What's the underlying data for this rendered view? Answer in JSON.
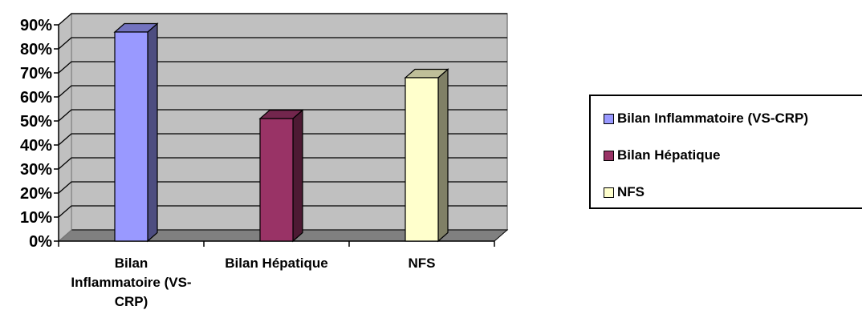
{
  "chart_data": {
    "type": "bar",
    "categories": [
      "Bilan Inflammatoire (VS-CRP)",
      "Bilan Hépatique",
      "NFS"
    ],
    "category_lines": [
      [
        "Bilan",
        "Inflammatoire (VS-",
        "CRP)"
      ],
      [
        "Bilan Hépatique"
      ],
      [
        "NFS"
      ]
    ],
    "values": [
      87,
      51,
      68
    ],
    "colors": [
      "#9999ff",
      "#993366",
      "#ffffcc"
    ],
    "ylim": [
      0,
      90
    ],
    "yticks": [
      "0%",
      "10%",
      "20%",
      "30%",
      "40%",
      "50%",
      "60%",
      "70%",
      "80%",
      "90%"
    ],
    "grid": true,
    "title": "",
    "xlabel": "",
    "ylabel": "",
    "legend_position": "right",
    "legend": [
      "Bilan Inflammatoire (VS-CRP)",
      "Bilan Hépatique",
      "NFS"
    ],
    "style": "3d-column"
  }
}
